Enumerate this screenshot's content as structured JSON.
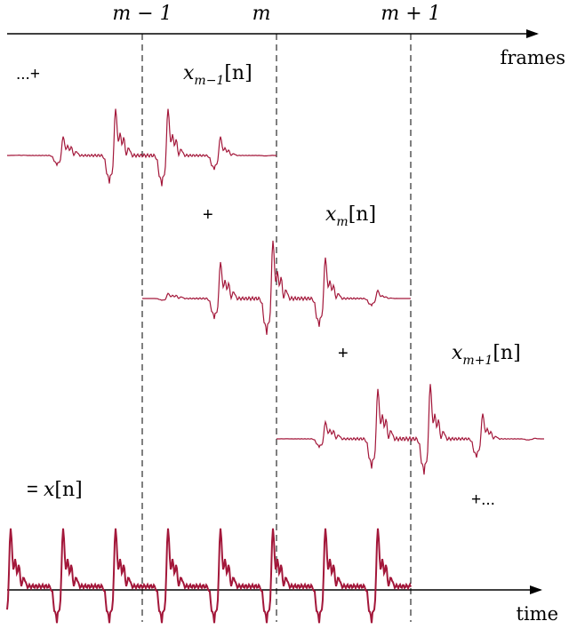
{
  "frame_labels": [
    "m − 1",
    "m",
    "m + 1"
  ],
  "axes": {
    "frames_label": "frames",
    "time_label": "time"
  },
  "signal_labels": {
    "x_prev": {
      "base": "x",
      "sub": "m−1",
      "arg": "[n]"
    },
    "x_curr": {
      "base": "x",
      "sub": "m",
      "arg": "[n]"
    },
    "x_next": {
      "base": "x",
      "sub": "m+1",
      "arg": "[n]"
    },
    "x_sum": {
      "eq": "= ",
      "base": "x",
      "arg": "[n]"
    }
  },
  "operators": {
    "leading": "...+",
    "plus_1": "+",
    "plus_2": "+",
    "trailing": "+..."
  },
  "colors": {
    "waveform": "#a3173a",
    "axis": "#000000"
  }
}
